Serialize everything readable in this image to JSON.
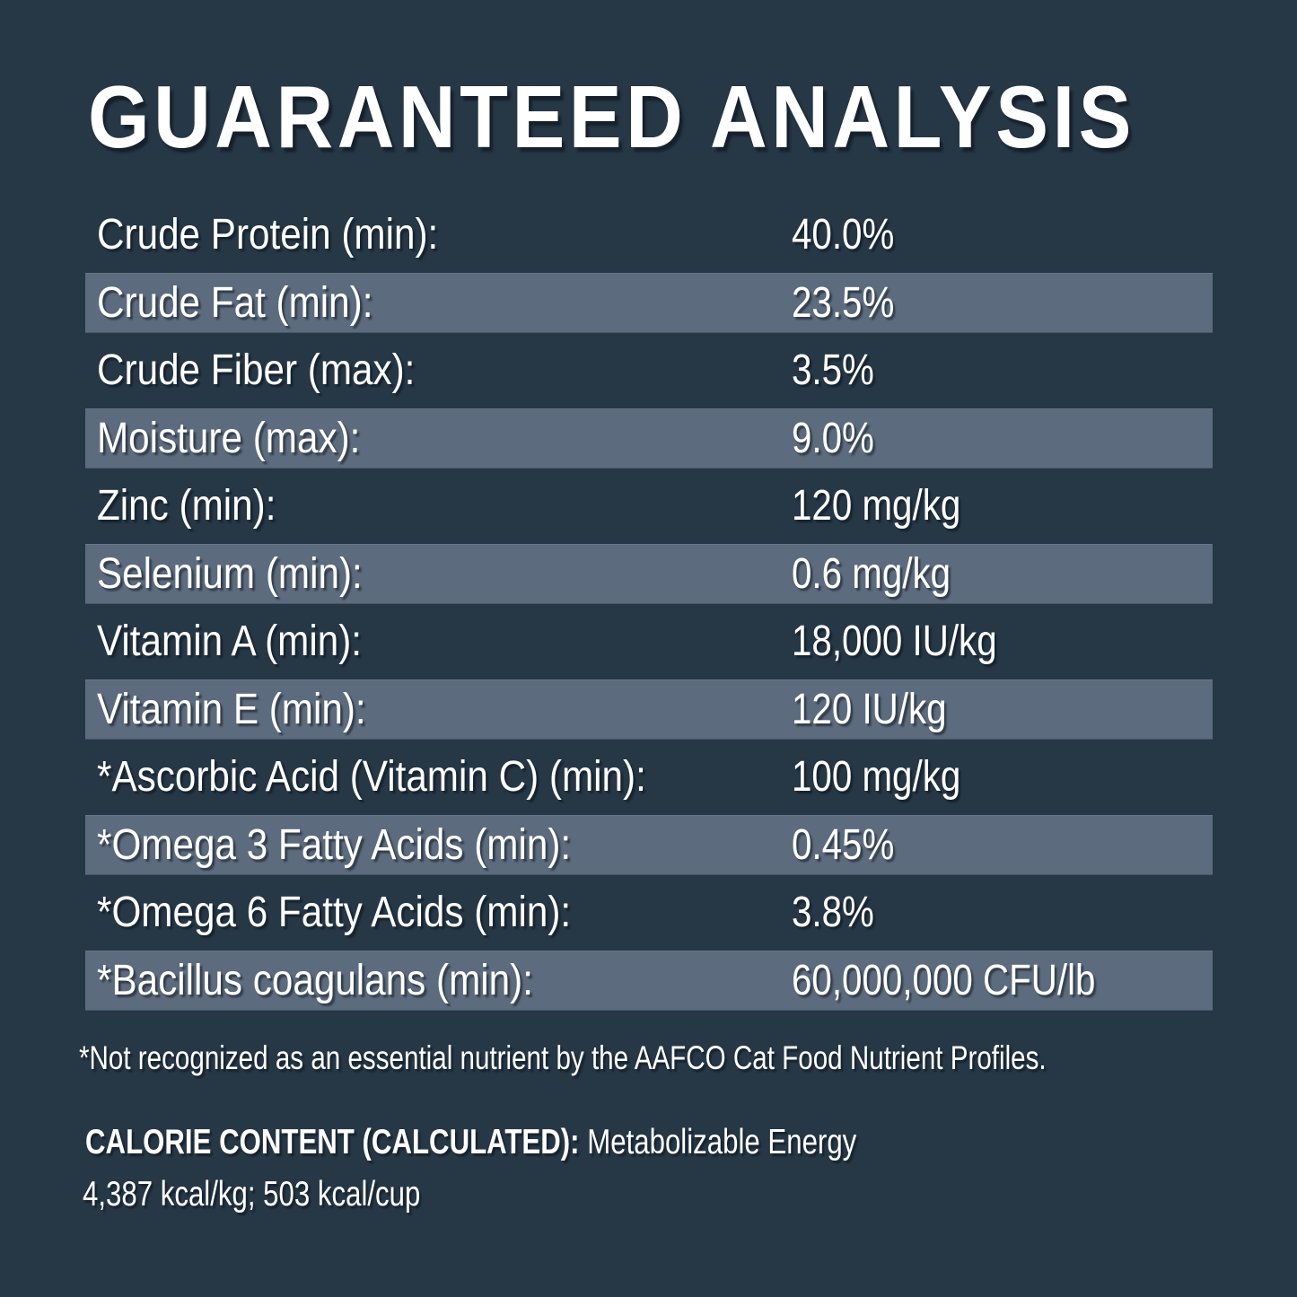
{
  "colors": {
    "background": "#263746",
    "stripe": "#5c6b7d",
    "text": "#ffffff"
  },
  "title": "GUARANTEED ANALYSIS",
  "table": {
    "rows": [
      {
        "label": "Crude Protein (min):",
        "value": "40.0%"
      },
      {
        "label": "Crude Fat (min):",
        "value": "23.5%"
      },
      {
        "label": "Crude Fiber (max):",
        "value": "3.5%"
      },
      {
        "label": "Moisture (max):",
        "value": "9.0%"
      },
      {
        "label": "Zinc (min):",
        "value": "120 mg/kg"
      },
      {
        "label": "Selenium (min):",
        "value": "0.6 mg/kg"
      },
      {
        "label": "Vitamin A (min):",
        "value": "18,000 IU/kg"
      },
      {
        "label": "Vitamin E (min):",
        "value": "120 IU/kg"
      },
      {
        "label": "*Ascorbic Acid (Vitamin C) (min):",
        "value": "100 mg/kg"
      },
      {
        "label": "*Omega 3 Fatty Acids (min):",
        "value": "0.45%"
      },
      {
        "label": "*Omega 6 Fatty Acids (min):",
        "value": "3.8%"
      },
      {
        "label": "*Bacillus coagulans (min):",
        "value": "60,000,000 CFU/lb"
      }
    ]
  },
  "footnote": "*Not recognized as an essential nutrient by the AAFCO Cat Food Nutrient Profiles.",
  "calorie": {
    "heading": "CALORIE CONTENT (CALCULATED):",
    "subheading": " Metabolizable Energy",
    "values": "4,387 kcal/kg; 503 kcal/cup"
  }
}
